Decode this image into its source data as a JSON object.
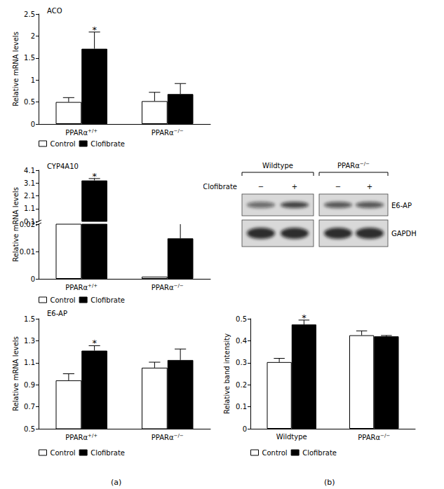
{
  "chart_data": [
    {
      "type": "bar",
      "title": "ACO",
      "ylabel": "Relative mRNA levels",
      "categories": [
        "PPARα+/+",
        "PPARα−/−"
      ],
      "series": [
        {
          "name": "Control",
          "color": "#ffffff",
          "values": [
            0.5,
            0.52
          ],
          "errors": [
            0.1,
            0.2
          ]
        },
        {
          "name": "Clofibrate",
          "color": "#000000",
          "values": [
            1.71,
            0.68
          ],
          "errors": [
            0.38,
            0.24
          ]
        }
      ],
      "ylim": [
        0,
        2.5
      ],
      "yticks": [
        0,
        0.5,
        1,
        1.5,
        2,
        2.5
      ],
      "grid": false,
      "legend": "below",
      "annotations": [
        {
          "text": "*",
          "series": "Clofibrate",
          "category": "PPARα+/+"
        }
      ]
    },
    {
      "type": "bar",
      "title": "CYP4A10",
      "ylabel": "Relative mRNA levels",
      "categories": [
        "PPARα+/+",
        "PPARα−/−"
      ],
      "series": [
        {
          "name": "Control",
          "color": "#ffffff",
          "values": [
            0.11,
            0.0008
          ],
          "errors": [
            null,
            null
          ]
        },
        {
          "name": "Clofibrate",
          "color": "#000000",
          "values": [
            3.3,
            0.0148
          ],
          "errors": [
            0.15,
            0.0055
          ]
        }
      ],
      "ylim": [
        [
          0,
          0.02
        ],
        [
          0.1,
          4.1
        ]
      ],
      "yticks": [
        [
          0,
          0.01,
          0.02
        ],
        [
          0.1,
          1.1,
          2.1,
          3.1,
          4.1
        ]
      ],
      "grid": false,
      "legend": "below",
      "annotations": [
        {
          "text": "*",
          "series": "Clofibrate",
          "category": "PPARα+/+"
        }
      ]
    },
    {
      "type": "bar",
      "title": "E6-AP",
      "ylabel": "Relative mRNA levels",
      "categories": [
        "PPARα+/+",
        "PPARα−/−"
      ],
      "series": [
        {
          "name": "Control",
          "color": "#ffffff",
          "values": [
            0.94,
            1.055
          ],
          "errors": [
            0.06,
            0.05
          ]
        },
        {
          "name": "Clofibrate",
          "color": "#000000",
          "values": [
            1.21,
            1.125
          ],
          "errors": [
            0.045,
            0.1
          ]
        }
      ],
      "ylim": [
        0.5,
        1.5
      ],
      "yticks": [
        0.5,
        0.7,
        0.9,
        1.1,
        1.3,
        1.5
      ],
      "grid": false,
      "legend": "below",
      "annotations": [
        {
          "text": "*",
          "series": "Clofibrate",
          "category": "PPARα+/+"
        }
      ]
    },
    {
      "type": "bar",
      "ylabel": "Relative band intensity",
      "categories": [
        "Wildtype",
        "PPARα−/−"
      ],
      "series": [
        {
          "name": "Control",
          "color": "#ffffff",
          "values": [
            0.303,
            0.425
          ],
          "errors": [
            0.017,
            0.02
          ]
        },
        {
          "name": "Clofibrate",
          "color": "#000000",
          "values": [
            0.474,
            0.42
          ],
          "errors": [
            0.02,
            0.004
          ]
        }
      ],
      "ylim": [
        0,
        0.5
      ],
      "yticks": [
        0,
        0.1,
        0.2,
        0.3,
        0.4,
        0.5
      ],
      "grid": false,
      "legend": "below",
      "annotations": [
        {
          "text": "*",
          "series": "Clofibrate",
          "category": "Wildtype"
        }
      ]
    }
  ],
  "blot": {
    "groups": [
      "Wildtype",
      "PPARα−/−"
    ],
    "treatment": "Clofibrate",
    "lanes": [
      "−",
      "+",
      "−",
      "+"
    ],
    "rows": [
      "E6-AP",
      "GAPDH"
    ]
  },
  "panel_labels": [
    "(a)",
    "(b)"
  ]
}
